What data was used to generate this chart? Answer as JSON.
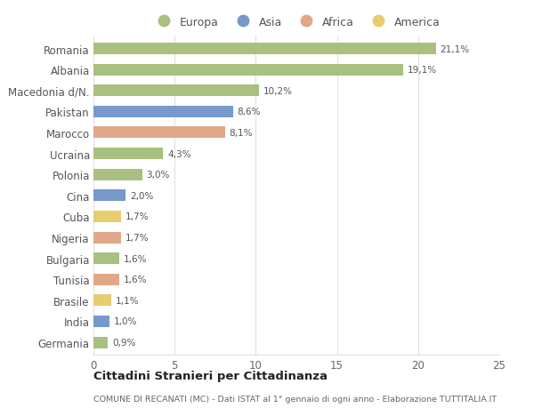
{
  "countries": [
    "Romania",
    "Albania",
    "Macedonia d/N.",
    "Pakistan",
    "Marocco",
    "Ucraina",
    "Polonia",
    "Cina",
    "Cuba",
    "Nigeria",
    "Bulgaria",
    "Tunisia",
    "Brasile",
    "India",
    "Germania"
  ],
  "values": [
    21.1,
    19.1,
    10.2,
    8.6,
    8.1,
    4.3,
    3.0,
    2.0,
    1.7,
    1.7,
    1.6,
    1.6,
    1.1,
    1.0,
    0.9
  ],
  "labels": [
    "21,1%",
    "19,1%",
    "10,2%",
    "8,6%",
    "8,1%",
    "4,3%",
    "3,0%",
    "2,0%",
    "1,7%",
    "1,7%",
    "1,6%",
    "1,6%",
    "1,1%",
    "1,0%",
    "0,9%"
  ],
  "continents": [
    "Europa",
    "Europa",
    "Europa",
    "Asia",
    "Africa",
    "Europa",
    "Europa",
    "Asia",
    "America",
    "Africa",
    "Europa",
    "Africa",
    "America",
    "Asia",
    "Europa"
  ],
  "colors": {
    "Europa": "#a8c080",
    "Asia": "#7799cc",
    "Africa": "#e0a888",
    "America": "#e8cc70"
  },
  "legend_order": [
    "Europa",
    "Asia",
    "Africa",
    "America"
  ],
  "xlim": [
    0,
    25
  ],
  "xticks": [
    0,
    5,
    10,
    15,
    20,
    25
  ],
  "title": "Cittadini Stranieri per Cittadinanza",
  "subtitle": "COMUNE DI RECANATI (MC) - Dati ISTAT al 1° gennaio di ogni anno - Elaborazione TUTTITALIA.IT",
  "bg_color": "#ffffff",
  "grid_color": "#e0e0e0",
  "bar_height": 0.55
}
